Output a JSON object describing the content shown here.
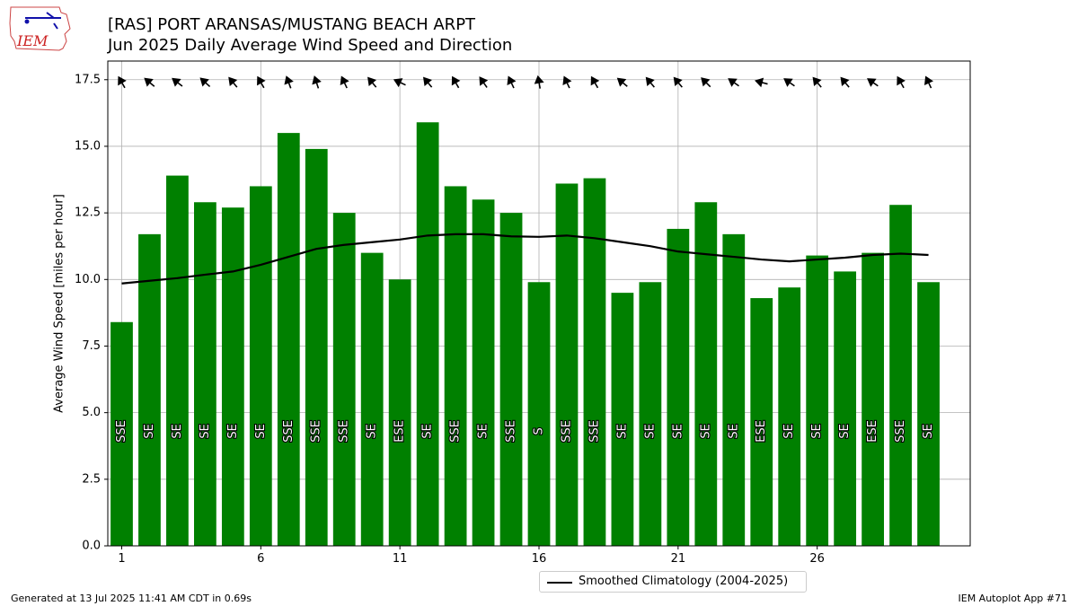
{
  "header": {
    "title": "[RAS] PORT ARANSAS/MUSTANG BEACH ARPT",
    "subtitle": "Jun 2025 Daily Average Wind Speed and Direction"
  },
  "logo": {
    "text": "IEM"
  },
  "footer": {
    "generated": "Generated at 13 Jul 2025 11:41 AM CDT in 0.69s",
    "app": "IEM Autoplot App #71"
  },
  "colors": {
    "bar": "#008000",
    "line": "#000000",
    "grid": "#b0b0b0"
  },
  "chart_data": {
    "type": "bar",
    "ylabel": "Average Wind Speed [miles per hour]",
    "xlabel": "",
    "xlim": [
      0.5,
      31.5
    ],
    "ylim": [
      0,
      18.2
    ],
    "grid": true,
    "legend_placement": "bottom-center",
    "xticks": [
      1,
      6,
      11,
      16,
      21,
      26
    ],
    "yticks": [
      0.0,
      2.5,
      5.0,
      7.5,
      10.0,
      12.5,
      15.0,
      17.5
    ],
    "ytick_labels": [
      "0.0",
      "2.5",
      "5.0",
      "7.5",
      "10.0",
      "12.5",
      "15.0",
      "17.5"
    ],
    "days": [
      1,
      2,
      3,
      4,
      5,
      6,
      7,
      8,
      9,
      10,
      11,
      12,
      13,
      14,
      15,
      16,
      17,
      18,
      19,
      20,
      21,
      22,
      23,
      24,
      25,
      26,
      27,
      28,
      29,
      30
    ],
    "values": [
      8.4,
      11.7,
      13.9,
      12.9,
      12.7,
      13.5,
      15.5,
      14.9,
      12.5,
      11.0,
      10.0,
      15.9,
      13.5,
      13.0,
      12.5,
      9.9,
      13.6,
      13.8,
      9.5,
      9.9,
      11.9,
      12.9,
      11.7,
      9.3,
      9.7,
      10.9,
      10.3,
      11.0,
      12.8,
      9.9
    ],
    "directions": [
      "SSE",
      "SE",
      "SE",
      "SE",
      "SE",
      "SE",
      "SSE",
      "SSE",
      "SSE",
      "SE",
      "ESE",
      "SE",
      "SSE",
      "SE",
      "SSE",
      "S",
      "SSE",
      "SSE",
      "SE",
      "SE",
      "SE",
      "SE",
      "SE",
      "ESE",
      "SE",
      "SE",
      "SE",
      "ESE",
      "SSE",
      "SE"
    ],
    "arrow_angles_deg": [
      150,
      130,
      128,
      132,
      140,
      150,
      160,
      162,
      155,
      140,
      115,
      140,
      150,
      145,
      155,
      170,
      155,
      150,
      130,
      140,
      140,
      135,
      125,
      105,
      125,
      140,
      140,
      125,
      150,
      155
    ],
    "arrow_y": 17.4,
    "series": [
      {
        "name": "Smoothed Climatology (2004-2025)",
        "type": "line",
        "values": [
          9.85,
          9.95,
          10.05,
          10.18,
          10.3,
          10.55,
          10.85,
          11.15,
          11.3,
          11.4,
          11.5,
          11.65,
          11.7,
          11.7,
          11.62,
          11.6,
          11.65,
          11.55,
          11.4,
          11.25,
          11.05,
          10.95,
          10.85,
          10.75,
          10.68,
          10.75,
          10.82,
          10.92,
          10.97,
          10.92
        ]
      }
    ]
  }
}
